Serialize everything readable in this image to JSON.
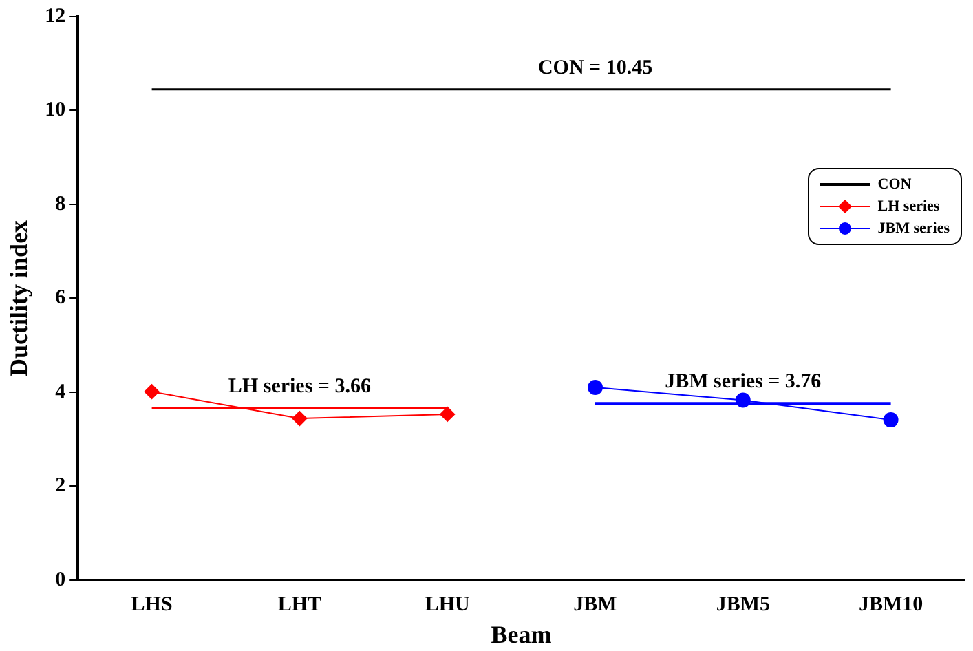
{
  "chart_data": {
    "type": "line",
    "xlabel": "Beam",
    "ylabel": "Ductility index",
    "categories": [
      "LHS",
      "LHT",
      "LHU",
      "JBM",
      "JBM5",
      "JBM10"
    ],
    "ylim": [
      0,
      12
    ],
    "yticks": [
      0,
      2,
      4,
      6,
      8,
      10,
      12
    ],
    "grid": false,
    "legend": "top right",
    "series": [
      {
        "name": "CON",
        "color": "#000000",
        "marker": "none",
        "values": [
          10.45,
          10.45,
          10.45,
          10.45,
          10.45,
          10.45
        ]
      },
      {
        "name": "LH series",
        "color": "#ff0000",
        "marker": "diamond",
        "values": [
          4.01,
          3.44,
          3.53,
          null,
          null,
          null
        ]
      },
      {
        "name": "JBM series",
        "color": "#0000ff",
        "marker": "circle",
        "values": [
          null,
          null,
          null,
          4.1,
          3.83,
          3.41
        ]
      },
      {
        "color": "#ff0000",
        "marker": "none",
        "values": [
          3.66,
          3.66,
          3.66,
          null,
          null,
          null
        ]
      },
      {
        "color": "#0000ff",
        "marker": "none",
        "values": [
          null,
          null,
          null,
          3.76,
          3.76,
          3.76
        ]
      }
    ],
    "annotations": [
      {
        "text": "CON = 10.45",
        "x": "JBM",
        "y": 10.45
      },
      {
        "text": "LH series = 3.66",
        "x": "LHT",
        "y": 3.66
      },
      {
        "text": "JBM series = 3.76",
        "x": "JBM5",
        "y": 3.76
      }
    ]
  }
}
